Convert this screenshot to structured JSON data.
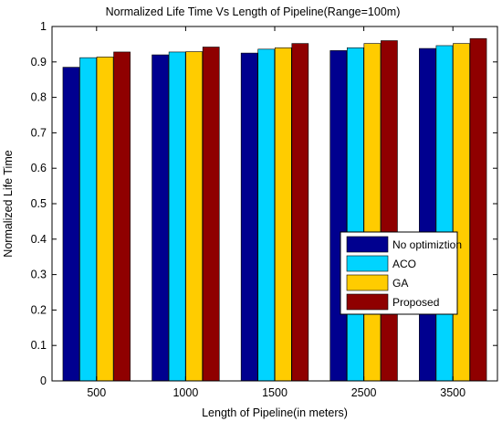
{
  "chart_data": {
    "type": "bar",
    "title": "Normalized Life Time Vs Length of Pipeline(Range=100m)",
    "xlabel": "Length of Pipeline(in meters)",
    "ylabel": "Normalized Life Time",
    "categories": [
      "500",
      "1000",
      "1500",
      "2500",
      "3500"
    ],
    "ylim": [
      0,
      1
    ],
    "yticks": [
      "0",
      "0.1",
      "0.2",
      "0.3",
      "0.4",
      "0.5",
      "0.6",
      "0.7",
      "0.8",
      "0.9",
      "1"
    ],
    "grid": false,
    "legend_position": "lower-right",
    "series": [
      {
        "name": "No optimiztion",
        "color": "#00008f",
        "values": [
          0.885,
          0.92,
          0.925,
          0.932,
          0.938
        ]
      },
      {
        "name": "ACO",
        "color": "#00d4ff",
        "values": [
          0.912,
          0.928,
          0.936,
          0.94,
          0.946
        ]
      },
      {
        "name": "GA",
        "color": "#ffcc00",
        "values": [
          0.914,
          0.929,
          0.94,
          0.952,
          0.952
        ]
      },
      {
        "name": "Proposed",
        "color": "#8f0000",
        "values": [
          0.928,
          0.942,
          0.952,
          0.96,
          0.966
        ]
      }
    ]
  }
}
